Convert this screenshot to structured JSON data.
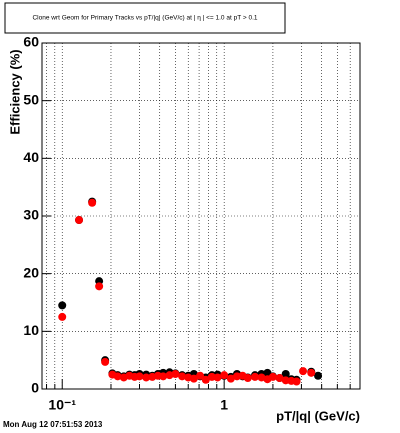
{
  "chart_data": {
    "type": "scatter",
    "title": "Clone wrt Geom for Primary Tracks vs pT/|q| (GeV/c) at |  η  | <= 1.0 at pT > 0.1",
    "x_label": "pT/|q| (GeV/c)",
    "y_label": "Efficiency (%)",
    "timestamp": "Mon Aug 12 07:51:53 2013",
    "log_x": true,
    "grid": true,
    "xlim": [
      0.075,
      6.9
    ],
    "ylim": [
      0,
      60
    ],
    "xticks": [
      {
        "value": 0.1,
        "label": "10⁻¹"
      },
      1
    ],
    "xminor_ticks": [
      0.08,
      0.09,
      0.2,
      0.3,
      0.4,
      0.5,
      0.6,
      0.7,
      0.8,
      0.9,
      2,
      3,
      4,
      5,
      6
    ],
    "yticks": [
      0,
      10,
      20,
      30,
      40,
      50,
      60
    ],
    "x": [
      0.1,
      0.127,
      0.153,
      0.169,
      0.184,
      0.204,
      0.22,
      0.24,
      0.26,
      0.28,
      0.3,
      0.33,
      0.36,
      0.39,
      0.42,
      0.46,
      0.5,
      0.55,
      0.6,
      0.65,
      0.71,
      0.77,
      0.84,
      0.91,
      1.0,
      1.1,
      1.2,
      1.3,
      1.4,
      1.55,
      1.7,
      1.85,
      2.0,
      2.2,
      2.4,
      2.6,
      2.8,
      3.07,
      3.45,
      3.8
    ],
    "series": [
      {
        "name": "black",
        "color": "#000000",
        "values": [
          14.5,
          29.3,
          32.5,
          18.7,
          5.0,
          2.7,
          2.4,
          2.2,
          2.5,
          2.4,
          2.6,
          2.5,
          2.3,
          2.6,
          2.8,
          2.9,
          2.7,
          2.4,
          2.3,
          2.6,
          2.2,
          2.0,
          2.4,
          2.5,
          2.3,
          2.1,
          2.6,
          2.2,
          2.0,
          2.4,
          2.6,
          2.8,
          2.2,
          1.9,
          2.6,
          1.7,
          1.6,
          null,
          3.0,
          2.3
        ]
      },
      {
        "name": "red",
        "color": "#ff0000",
        "values": [
          12.5,
          29.3,
          32.3,
          17.8,
          4.7,
          2.5,
          2.2,
          2.0,
          2.3,
          2.1,
          2.2,
          2.0,
          2.1,
          2.3,
          2.2,
          2.4,
          2.6,
          2.2,
          2.0,
          1.8,
          2.3,
          1.6,
          2.1,
          2.0,
          2.4,
          1.8,
          2.2,
          2.3,
          1.9,
          2.1,
          2.0,
          1.7,
          2.1,
          1.9,
          1.5,
          1.4,
          1.3,
          3.1,
          2.8,
          null
        ]
      }
    ]
  }
}
